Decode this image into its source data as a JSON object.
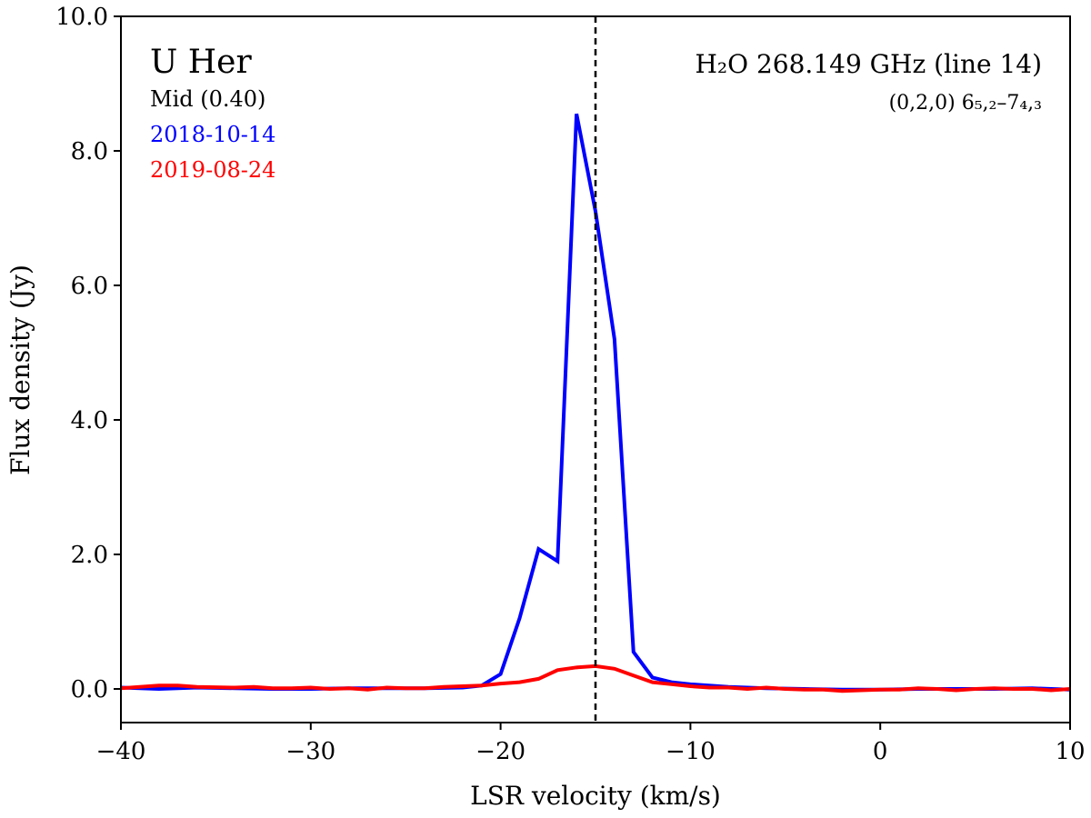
{
  "chart_data": {
    "type": "line",
    "xlabel": "LSR velocity (km/s)",
    "ylabel": "Flux density (Jy)",
    "xlim": [
      -40,
      10
    ],
    "ylim": [
      -0.5,
      10.0
    ],
    "xticks": [
      {
        "value": -40,
        "label": "−40"
      },
      {
        "value": -30,
        "label": "−30"
      },
      {
        "value": -20,
        "label": "−20"
      },
      {
        "value": -10,
        "label": "−10"
      },
      {
        "value": 0,
        "label": "0"
      },
      {
        "value": 10,
        "label": "10"
      }
    ],
    "yticks": [
      {
        "value": 0,
        "label": "0.0"
      },
      {
        "value": 2,
        "label": "2.0"
      },
      {
        "value": 4,
        "label": "4.0"
      },
      {
        "value": 6,
        "label": "6.0"
      },
      {
        "value": 8,
        "label": "8.0"
      },
      {
        "value": 10,
        "label": "10.0"
      }
    ],
    "vline": {
      "x": -15.0,
      "style": "dashed",
      "color": "#000000"
    },
    "annotations": {
      "star": "U Her",
      "phase": "Mid (0.40)",
      "line_name": "H₂O 268.149 GHz (line 14)",
      "transition": "(0,2,0) 6₅,₂–7₄,₃"
    },
    "series": [
      {
        "name": "2018-10-14",
        "color": "#0000ff",
        "x": [
          -40,
          -38,
          -36,
          -34,
          -32,
          -30,
          -28,
          -26,
          -24,
          -22,
          -21,
          -20,
          -19,
          -18,
          -17,
          -16,
          -15,
          -14,
          -13,
          -12,
          -11,
          -10,
          -8,
          -6,
          -4,
          -2,
          0,
          2,
          4,
          6,
          8,
          10
        ],
        "y": [
          0.02,
          0.0,
          0.02,
          0.01,
          0.0,
          0.0,
          0.01,
          0.01,
          0.01,
          0.02,
          0.05,
          0.22,
          1.05,
          2.08,
          1.9,
          8.55,
          7.1,
          5.2,
          0.55,
          0.17,
          0.1,
          0.07,
          0.03,
          0.01,
          0.0,
          -0.01,
          -0.01,
          0.0,
          0.0,
          0.0,
          0.01,
          -0.01
        ]
      },
      {
        "name": "2019-08-24",
        "color": "#ff0000",
        "x": [
          -40,
          -39,
          -38,
          -37,
          -36,
          -34,
          -33,
          -32,
          -31,
          -30,
          -29,
          -28,
          -27,
          -26,
          -25,
          -24,
          -23,
          -22,
          -21,
          -20,
          -19,
          -18,
          -17,
          -16,
          -15,
          -14,
          -13,
          -12,
          -11,
          -10,
          -9,
          -8,
          -7,
          -6,
          -5,
          -4,
          -3,
          -2,
          -1,
          0,
          1,
          2,
          3,
          4,
          5,
          6,
          7,
          8,
          9,
          10
        ],
        "y": [
          0.01,
          0.03,
          0.05,
          0.05,
          0.03,
          0.02,
          0.03,
          0.01,
          0.01,
          0.02,
          0.0,
          0.01,
          -0.01,
          0.02,
          0.01,
          0.01,
          0.03,
          0.04,
          0.05,
          0.08,
          0.1,
          0.15,
          0.28,
          0.32,
          0.34,
          0.3,
          0.2,
          0.1,
          0.07,
          0.04,
          0.02,
          0.02,
          0.0,
          0.02,
          0.0,
          -0.01,
          -0.01,
          -0.03,
          -0.02,
          -0.01,
          -0.01,
          0.01,
          0.0,
          -0.02,
          0.0,
          0.01,
          0.0,
          0.0,
          -0.02,
          0.0
        ]
      }
    ]
  }
}
